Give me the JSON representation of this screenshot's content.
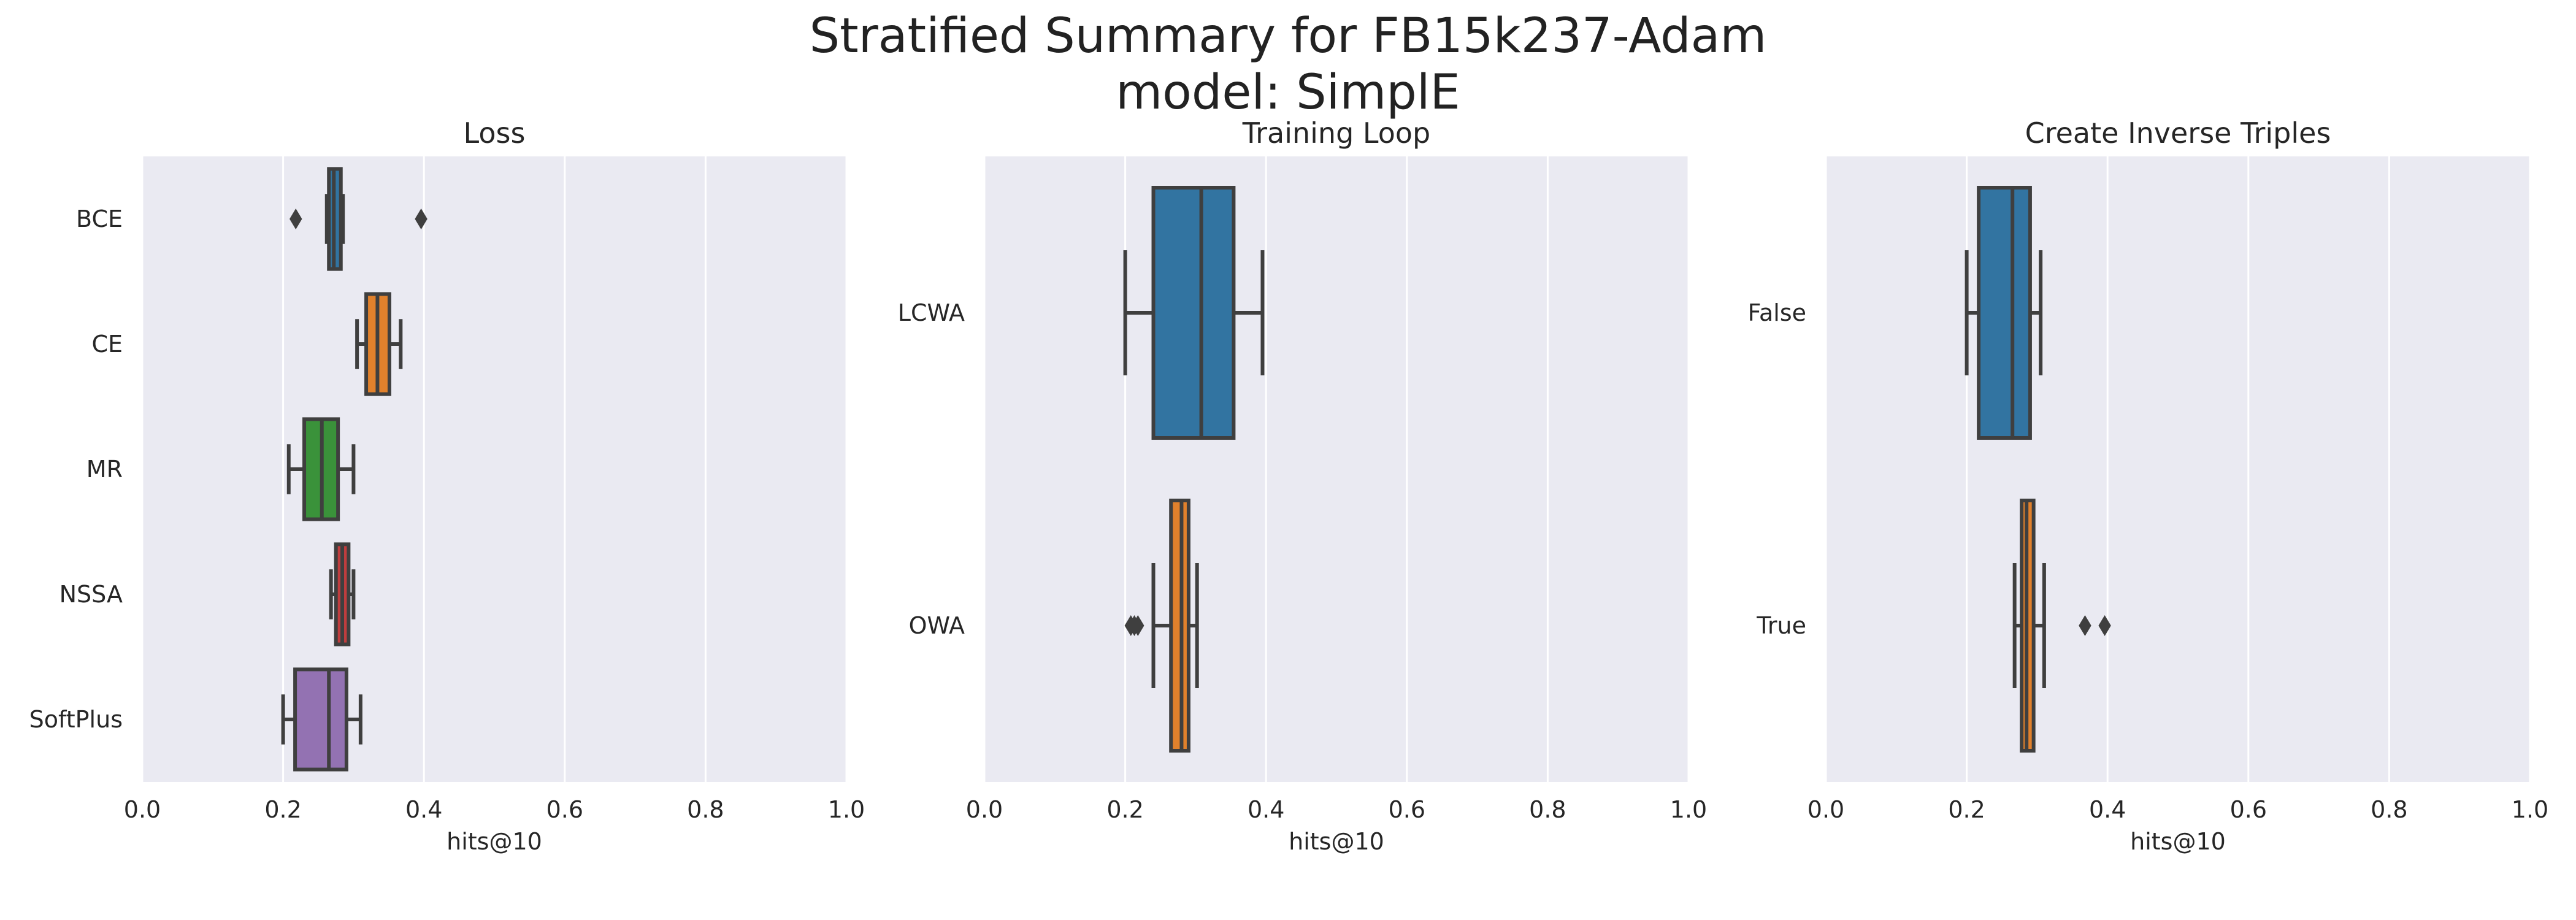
{
  "figure": {
    "title_line1": "Stratified Summary for FB15k237-Adam",
    "title_line2": "model: SimplE"
  },
  "chart_data": [
    {
      "type": "box",
      "title": "Loss",
      "xlabel": "hits@10",
      "ylabel": "",
      "xlim": [
        0.0,
        1.0
      ],
      "xticks": [
        0.0,
        0.2,
        0.4,
        0.6,
        0.8,
        1.0
      ],
      "xtick_labels": [
        "0.0",
        "0.2",
        "0.4",
        "0.6",
        "0.8",
        "1.0"
      ],
      "grid": true,
      "categories": [
        "BCE",
        "CE",
        "MR",
        "NSSA",
        "SoftPlus"
      ],
      "boxes": [
        {
          "category": "BCE",
          "whisker_low": 0.262,
          "q1": 0.265,
          "median": 0.272,
          "q3": 0.282,
          "whisker_high": 0.285,
          "outliers": [
            0.218,
            0.396
          ],
          "color": "#3274a1"
        },
        {
          "category": "CE",
          "whisker_low": 0.305,
          "q1": 0.318,
          "median": 0.334,
          "q3": 0.351,
          "whisker_high": 0.367,
          "outliers": [],
          "color": "#e1812c"
        },
        {
          "category": "MR",
          "whisker_low": 0.208,
          "q1": 0.23,
          "median": 0.255,
          "q3": 0.278,
          "whisker_high": 0.3,
          "outliers": [],
          "color": "#3a923a"
        },
        {
          "category": "NSSA",
          "whisker_low": 0.268,
          "q1": 0.275,
          "median": 0.284,
          "q3": 0.293,
          "whisker_high": 0.3,
          "outliers": [],
          "color": "#c03d3e"
        },
        {
          "category": "SoftPlus",
          "whisker_low": 0.2,
          "q1": 0.217,
          "median": 0.265,
          "q3": 0.29,
          "whisker_high": 0.31,
          "outliers": [],
          "color": "#9372b2"
        }
      ]
    },
    {
      "type": "box",
      "title": "Training Loop",
      "xlabel": "hits@10",
      "ylabel": "",
      "xlim": [
        0.0,
        1.0
      ],
      "xticks": [
        0.0,
        0.2,
        0.4,
        0.6,
        0.8,
        1.0
      ],
      "xtick_labels": [
        "0.0",
        "0.2",
        "0.4",
        "0.6",
        "0.8",
        "1.0"
      ],
      "grid": true,
      "categories": [
        "LCWA",
        "OWA"
      ],
      "boxes": [
        {
          "category": "LCWA",
          "whisker_low": 0.2,
          "q1": 0.24,
          "median": 0.308,
          "q3": 0.354,
          "whisker_high": 0.395,
          "outliers": [],
          "color": "#3274a1"
        },
        {
          "category": "OWA",
          "whisker_low": 0.24,
          "q1": 0.265,
          "median": 0.28,
          "q3": 0.29,
          "whisker_high": 0.302,
          "outliers": [
            0.208,
            0.213,
            0.218
          ],
          "color": "#e1812c"
        }
      ]
    },
    {
      "type": "box",
      "title": "Create Inverse Triples",
      "xlabel": "hits@10",
      "ylabel": "",
      "xlim": [
        0.0,
        1.0
      ],
      "xticks": [
        0.0,
        0.2,
        0.4,
        0.6,
        0.8,
        1.0
      ],
      "xtick_labels": [
        "0.0",
        "0.2",
        "0.4",
        "0.6",
        "0.8",
        "1.0"
      ],
      "grid": true,
      "categories": [
        "False",
        "True"
      ],
      "boxes": [
        {
          "category": "False",
          "whisker_low": 0.2,
          "q1": 0.217,
          "median": 0.265,
          "q3": 0.29,
          "whisker_high": 0.305,
          "outliers": [],
          "color": "#3274a1"
        },
        {
          "category": "True",
          "whisker_low": 0.268,
          "q1": 0.278,
          "median": 0.285,
          "q3": 0.295,
          "whisker_high": 0.31,
          "outliers": [
            0.368,
            0.396
          ],
          "color": "#e1812c"
        }
      ]
    }
  ]
}
